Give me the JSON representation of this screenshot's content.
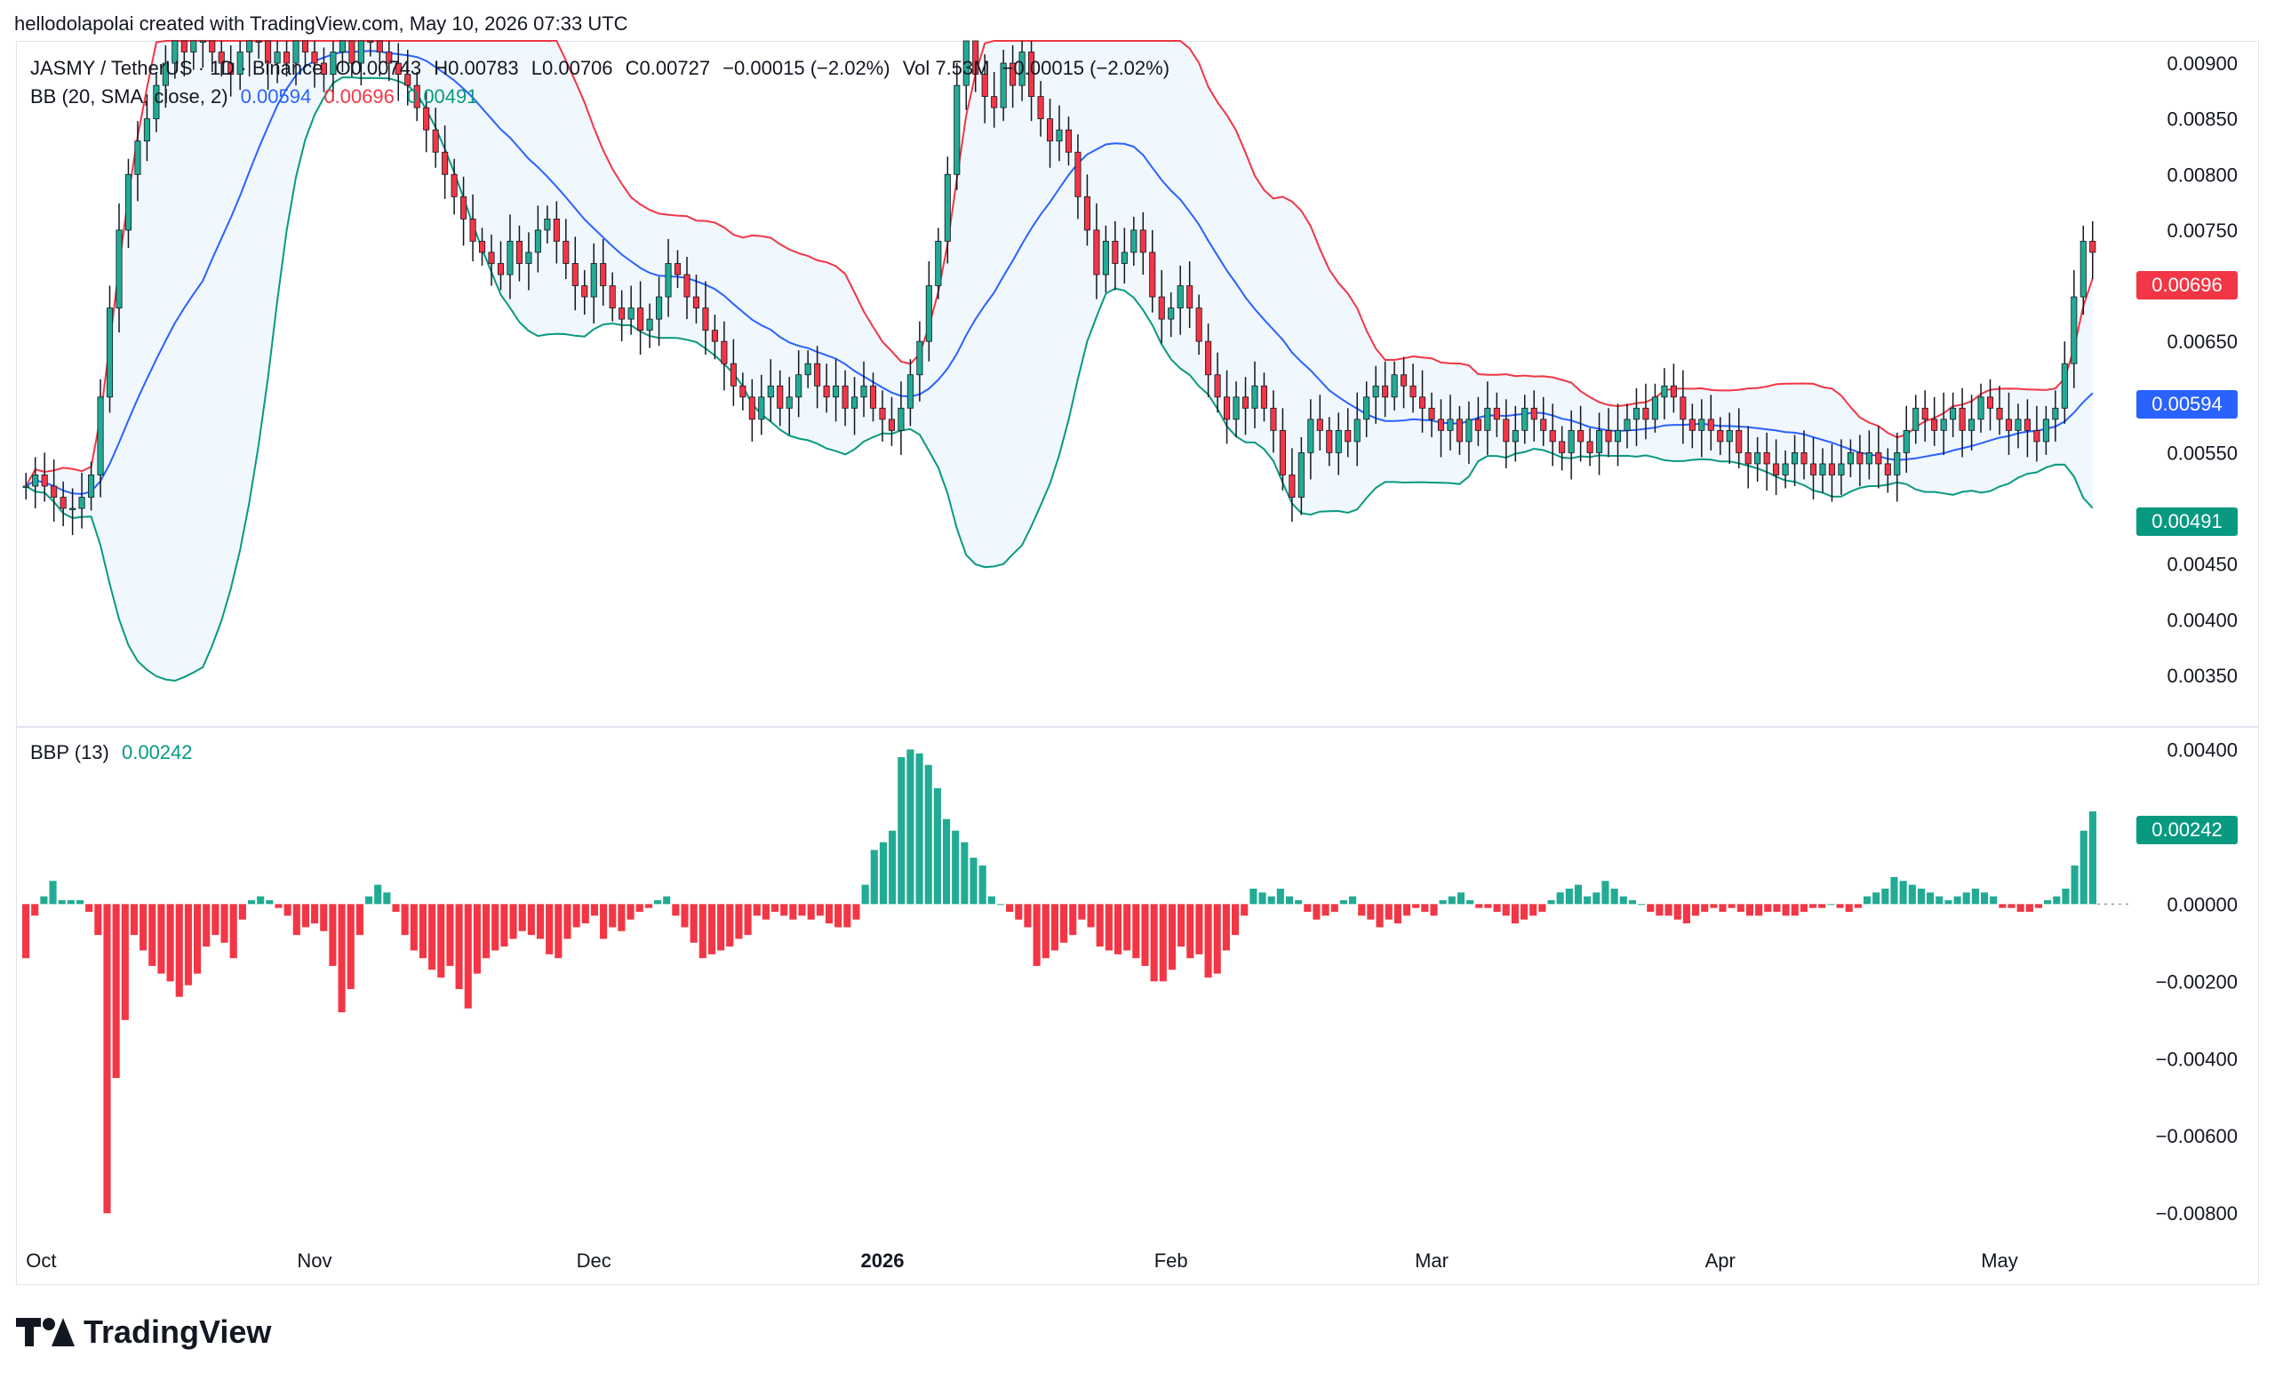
{
  "credit": "hellodolapolai created with TradingView.com, May 10, 2026 07:33 UTC",
  "brand": "TradingView",
  "colors": {
    "up": "#22ab94",
    "down": "#f23645",
    "bb_basis": "#2962ff",
    "bb_upper": "#f23645",
    "bb_lower": "#089981",
    "bb_fill": "#f0f7fd",
    "axis_text": "#131722"
  },
  "legend": {
    "symbol": "JASMY / TetherUS · 1D · Binance",
    "open": "O0.00743",
    "high": "H0.00783",
    "low": "L0.00706",
    "close": "C0.00727",
    "change": "−0.00015 (−2.02%)",
    "volume": "Vol 7.53M",
    "change2": "−0.00015 (−2.02%)",
    "bb_label": "BB (20, SMA, close, 2)",
    "bb_basis": "0.00594",
    "bb_upper": "0.00696",
    "bb_lower": "0.00491",
    "bbp_label": "BBP (13)",
    "bbp_value": "0.00242"
  },
  "price_tags": {
    "upper": "0.00696",
    "basis": "0.00594",
    "lower": "0.00491",
    "bbp": "0.00242"
  },
  "chart_data": [
    {
      "type": "candlestick",
      "title": "JASMY / TetherUS · 1D · Binance",
      "ylim": [
        0.0031,
        0.0092
      ],
      "y_ticks": [
        "0.00900",
        "0.00850",
        "0.00800",
        "0.00750",
        "0.00650",
        "0.00550",
        "0.00450",
        "0.00400",
        "0.00350"
      ],
      "y_tick_values": [
        0.009,
        0.0085,
        0.008,
        0.0075,
        0.0065,
        0.0055,
        0.0045,
        0.004,
        0.0035
      ],
      "x_ticks": [
        "Oct",
        "Nov",
        "Dec",
        "2026",
        "Feb",
        "Mar",
        "Apr",
        "May"
      ],
      "x_tick_index": [
        0,
        31,
        61,
        92,
        123,
        151,
        182,
        212
      ],
      "series_close": [
        0.0052,
        0.0053,
        0.0052,
        0.0051,
        0.005,
        0.005,
        0.0051,
        0.0053,
        0.006,
        0.0068,
        0.0075,
        0.008,
        0.0083,
        0.0085,
        0.0088,
        0.009,
        0.0092,
        0.0091,
        0.0092,
        0.0093,
        0.0091,
        0.009,
        0.0089,
        0.0091,
        0.0093,
        0.0092,
        0.009,
        0.0091,
        0.009,
        0.0092,
        0.0091,
        0.009,
        0.0089,
        0.0091,
        0.0092,
        0.009,
        0.0093,
        0.0092,
        0.0091,
        0.009,
        0.0089,
        0.0088,
        0.0086,
        0.0084,
        0.0082,
        0.008,
        0.0078,
        0.0076,
        0.0074,
        0.0073,
        0.0072,
        0.0071,
        0.0074,
        0.0072,
        0.0073,
        0.0075,
        0.0076,
        0.0074,
        0.0072,
        0.007,
        0.0069,
        0.0072,
        0.007,
        0.0068,
        0.0067,
        0.0068,
        0.0066,
        0.0067,
        0.0069,
        0.0072,
        0.0071,
        0.0069,
        0.0068,
        0.0066,
        0.0065,
        0.0063,
        0.0061,
        0.006,
        0.0058,
        0.006,
        0.0061,
        0.0059,
        0.006,
        0.0062,
        0.0063,
        0.0061,
        0.006,
        0.0061,
        0.0059,
        0.006,
        0.0061,
        0.0059,
        0.0058,
        0.0057,
        0.0059,
        0.0062,
        0.0065,
        0.007,
        0.0074,
        0.008,
        0.0088,
        0.0092,
        0.0089,
        0.0087,
        0.0086,
        0.009,
        0.0088,
        0.0091,
        0.0087,
        0.0085,
        0.0083,
        0.0084,
        0.0082,
        0.0078,
        0.0075,
        0.0071,
        0.0074,
        0.0072,
        0.0073,
        0.0075,
        0.0073,
        0.0069,
        0.0067,
        0.0068,
        0.007,
        0.0068,
        0.0065,
        0.0062,
        0.006,
        0.0058,
        0.006,
        0.0059,
        0.0061,
        0.0059,
        0.0057,
        0.0053,
        0.0051,
        0.0055,
        0.0058,
        0.0057,
        0.0055,
        0.0057,
        0.0056,
        0.0058,
        0.006,
        0.0061,
        0.006,
        0.0062,
        0.0061,
        0.006,
        0.0059,
        0.0058,
        0.0057,
        0.0058,
        0.0056,
        0.0058,
        0.0057,
        0.0059,
        0.0058,
        0.0056,
        0.0057,
        0.0059,
        0.0058,
        0.0057,
        0.0056,
        0.0055,
        0.0057,
        0.0056,
        0.0055,
        0.0057,
        0.0056,
        0.0057,
        0.0058,
        0.0059,
        0.0058,
        0.006,
        0.0061,
        0.006,
        0.0058,
        0.0057,
        0.0058,
        0.0057,
        0.0056,
        0.0057,
        0.0055,
        0.0054,
        0.0055,
        0.0054,
        0.0053,
        0.0054,
        0.0055,
        0.0054,
        0.0053,
        0.0054,
        0.0053,
        0.0054,
        0.0055,
        0.0054,
        0.0055,
        0.0054,
        0.0053,
        0.0055,
        0.0057,
        0.0059,
        0.0058,
        0.0057,
        0.0058,
        0.0059,
        0.0057,
        0.0058,
        0.006,
        0.0059,
        0.0058,
        0.0057,
        0.0058,
        0.0057,
        0.0056,
        0.0058,
        0.0059,
        0.0063,
        0.0069,
        0.0074,
        0.0073
      ]
    },
    {
      "type": "bar",
      "title": "BBP (13)",
      "ylim": [
        -0.0088,
        0.0044
      ],
      "y_ticks": [
        "0.00400",
        "0.00200",
        "0.00000",
        "−0.00200",
        "−0.00400",
        "−0.00600",
        "−0.00800"
      ],
      "y_tick_values": [
        0.004,
        0.002,
        0,
        -0.002,
        -0.004,
        -0.006,
        -0.008
      ],
      "values": [
        -0.0014,
        -0.0003,
        0.0002,
        0.0006,
        0.0001,
        0.0001,
        0.0001,
        -0.0002,
        -0.0008,
        -0.008,
        -0.0045,
        -0.003,
        -0.0008,
        -0.0012,
        -0.0016,
        -0.0018,
        -0.002,
        -0.0024,
        -0.0021,
        -0.0018,
        -0.0011,
        -0.0008,
        -0.001,
        -0.0014,
        -0.0004,
        0.0001,
        0.0002,
        0.0001,
        -0.0001,
        -0.0003,
        -0.0008,
        -0.0006,
        -0.0005,
        -0.0007,
        -0.0016,
        -0.0028,
        -0.0022,
        -0.0008,
        0.0002,
        0.0005,
        0.0003,
        -0.0002,
        -0.0008,
        -0.0012,
        -0.0014,
        -0.0017,
        -0.0019,
        -0.0016,
        -0.0022,
        -0.0027,
        -0.0018,
        -0.0014,
        -0.0012,
        -0.0011,
        -0.0009,
        -0.0007,
        -0.0008,
        -0.0009,
        -0.0013,
        -0.0014,
        -0.0009,
        -0.0006,
        -0.0005,
        -0.0003,
        -0.0009,
        -0.0006,
        -0.0007,
        -0.0004,
        -0.0002,
        -0.0001,
        0.0001,
        0.0002,
        -0.0003,
        -0.0006,
        -0.001,
        -0.0014,
        -0.0013,
        -0.0012,
        -0.0011,
        -0.0009,
        -0.0008,
        -0.0003,
        -0.0004,
        -0.0002,
        -0.0003,
        -0.0004,
        -0.0003,
        -0.0004,
        -0.0003,
        -0.0005,
        -0.0006,
        -0.0006,
        -0.0004,
        0.0005,
        0.0014,
        0.0016,
        0.0019,
        0.0038,
        0.004,
        0.0039,
        0.0036,
        0.003,
        0.0022,
        0.0019,
        0.0016,
        0.0012,
        0.001,
        0.0002,
        0.0,
        -0.0002,
        -0.0004,
        -0.0006,
        -0.0016,
        -0.0014,
        -0.0012,
        -0.001,
        -0.0008,
        -0.0004,
        -0.0006,
        -0.0011,
        -0.0012,
        -0.0013,
        -0.0012,
        -0.0014,
        -0.0016,
        -0.002,
        -0.002,
        -0.0017,
        -0.0011,
        -0.0014,
        -0.0013,
        -0.0019,
        -0.0018,
        -0.0012,
        -0.0008,
        -0.0003,
        0.0004,
        0.0003,
        0.0002,
        0.0004,
        0.0002,
        0.0001,
        -0.0002,
        -0.0004,
        -0.0003,
        -0.0002,
        0.0001,
        0.0002,
        -0.0003,
        -0.0004,
        -0.0006,
        -0.0004,
        -0.0005,
        -0.0003,
        -0.0001,
        -0.0002,
        -0.0003,
        0.0001,
        0.0002,
        0.0003,
        0.0001,
        -0.0001,
        -0.0001,
        -0.0002,
        -0.0003,
        -0.0005,
        -0.0004,
        -0.0003,
        -0.0002,
        0.0001,
        0.0003,
        0.0004,
        0.0005,
        0.0002,
        0.0003,
        0.0006,
        0.0004,
        0.0002,
        0.0001,
        0.0,
        -0.0002,
        -0.0003,
        -0.0003,
        -0.0004,
        -0.0005,
        -0.0003,
        -0.0002,
        -0.0001,
        -0.0002,
        -0.0001,
        -0.0002,
        -0.0003,
        -0.0003,
        -0.0002,
        -0.0002,
        -0.0003,
        -0.0003,
        -0.0002,
        -0.0001,
        -0.0001,
        0.0,
        -0.0001,
        -0.0002,
        -0.0001,
        0.0002,
        0.0003,
        0.0004,
        0.0007,
        0.0006,
        0.0005,
        0.0004,
        0.0003,
        0.0002,
        0.0001,
        0.0002,
        0.0003,
        0.0004,
        0.0003,
        0.0002,
        -0.0001,
        -0.0001,
        -0.0002,
        -0.0002,
        -0.0001,
        0.0001,
        0.0002,
        0.0004,
        0.001,
        0.0019,
        0.0024
      ]
    }
  ]
}
